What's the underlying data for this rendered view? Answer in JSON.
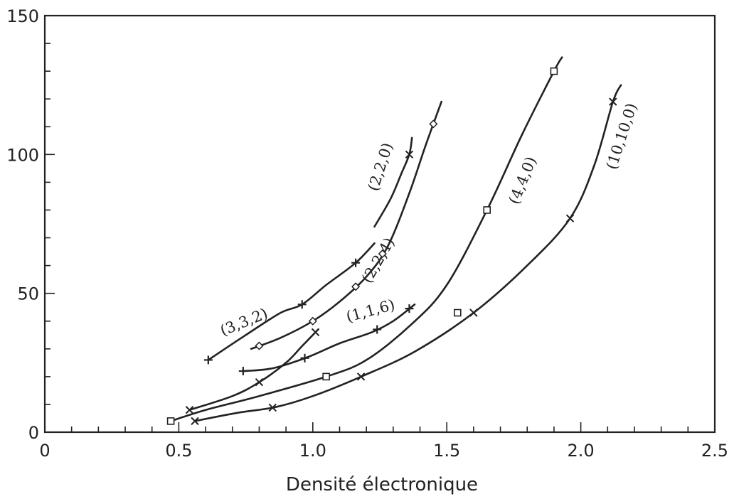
{
  "chart_data": {
    "type": "line",
    "title": "",
    "xlabel": "Densité électronique",
    "ylabel": "",
    "xlim": [
      0,
      2.5
    ],
    "ylim": [
      0,
      150
    ],
    "xticks": [
      0,
      0.5,
      1.0,
      1.5,
      2.0,
      2.5
    ],
    "xtick_labels": [
      "0",
      "0.5",
      "1.0",
      "1.5",
      "2.0",
      "2.5"
    ],
    "yticks": [
      0,
      50,
      100,
      150
    ],
    "ytick_labels": [
      "0",
      "50",
      "100",
      "150"
    ],
    "grid": false,
    "colors": {
      "ink": "#222222",
      "background": "#ffffff"
    },
    "series": [
      {
        "name": "(3,3,2)",
        "marker": "plus",
        "x": [
          0.61,
          0.75,
          0.88,
          0.96,
          1.05,
          1.16,
          1.23
        ],
        "y": [
          26,
          35,
          43,
          46,
          53,
          61,
          68
        ],
        "marker_x": [
          0.61,
          0.96,
          1.16
        ]
      },
      {
        "name": "(2,2,0)",
        "marker": "x",
        "x": [
          1.23,
          1.29,
          1.33,
          1.36,
          1.37
        ],
        "y": [
          74,
          84,
          93,
          100,
          106
        ],
        "marker_x": [
          1.36
        ]
      },
      {
        "name": "(2,2,4)",
        "marker": "diamond",
        "x": [
          0.77,
          0.88,
          1.0,
          1.1,
          1.2,
          1.28,
          1.36,
          1.42,
          1.48
        ],
        "y": [
          30,
          34,
          40,
          47,
          56,
          67,
          86,
          103,
          119
        ],
        "marker_x": [
          0.8,
          1.0,
          1.16,
          1.26,
          1.45
        ]
      },
      {
        "name": "(1,1,6)",
        "marker": "plus",
        "x": [
          0.74,
          0.85,
          0.98,
          1.1,
          1.22,
          1.3,
          1.38
        ],
        "y": [
          22,
          23,
          27,
          32,
          36,
          40,
          46
        ],
        "marker_x": [
          0.74,
          0.97,
          1.24,
          1.36
        ]
      },
      {
        "name": "",
        "marker": "x",
        "x": [
          0.54,
          0.7,
          0.8,
          0.9,
          0.96,
          1.02
        ],
        "y": [
          8,
          13,
          18,
          25,
          31,
          37
        ],
        "marker_x": [
          0.54,
          0.8,
          1.01
        ]
      },
      {
        "name": "(4,4,0)",
        "marker": "square",
        "x": [
          0.47,
          0.6,
          0.8,
          1.05,
          1.2,
          1.37,
          1.5,
          1.65,
          1.78,
          1.9,
          1.93
        ],
        "y": [
          4,
          8,
          13,
          20,
          26,
          39,
          53,
          80,
          107,
          130,
          135
        ],
        "marker_x": [
          0.47,
          1.05,
          1.65,
          1.9
        ]
      },
      {
        "name": "(10,10,0)",
        "marker": "x",
        "x": [
          0.56,
          0.72,
          0.86,
          1.0,
          1.18,
          1.38,
          1.6,
          1.8,
          1.96,
          2.05,
          2.12,
          2.15
        ],
        "y": [
          4,
          7,
          9,
          13,
          20,
          29,
          43,
          60,
          77,
          96,
          119,
          125
        ],
        "marker_x": [
          0.56,
          0.85,
          1.18,
          1.6,
          1.96,
          2.12
        ]
      }
    ],
    "stray_points": [
      {
        "x": 1.54,
        "y": 43,
        "marker": "square"
      }
    ],
    "labels": [
      {
        "text": "(3,3,2)",
        "x": 0.75,
        "y": 38,
        "angle": -22
      },
      {
        "text": "(2,2,0)",
        "x": 1.27,
        "y": 95,
        "angle": -72
      },
      {
        "text": "(2,2,4)",
        "x": 1.26,
        "y": 61,
        "angle": -60
      },
      {
        "text": "(1,1,6)",
        "x": 1.22,
        "y": 42,
        "angle": -15
      },
      {
        "text": "(4,4,0)",
        "x": 1.8,
        "y": 90,
        "angle": -68
      },
      {
        "text": "(10,10,0)",
        "x": 2.17,
        "y": 106,
        "angle": -72
      }
    ]
  }
}
